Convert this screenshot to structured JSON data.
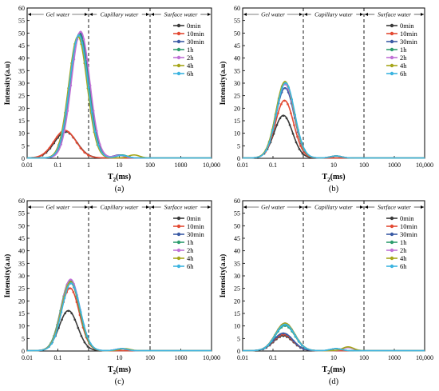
{
  "figure": {
    "region_labels": [
      "Gel water",
      "Capillary water",
      "Surface water"
    ],
    "y_axis_label": "Intensity(a.u)",
    "x_axis_label_base": "T",
    "x_axis_label_sub": "2",
    "x_axis_label_unit": "(ms)"
  },
  "colors": {
    "0min": "#3a3a3a",
    "10min": "#e34a33",
    "30min": "#3b5ba5",
    "1h": "#2e9d6e",
    "2h": "#c071d6",
    "4h": "#a6a61a",
    "6h": "#3cb4e0"
  },
  "chart_data": [
    {
      "panel_label": "(a)",
      "type": "line",
      "x_scale": "log",
      "xlim": [
        0.01,
        10000
      ],
      "ylim": [
        0,
        60
      ],
      "x_ticks": [
        "0.01",
        "0.1",
        "1",
        "10",
        "100",
        "1000",
        "10,000"
      ],
      "y_ticks": [
        "0",
        "5",
        "10",
        "15",
        "20",
        "25",
        "30",
        "35",
        "40",
        "45",
        "50",
        "55",
        "60"
      ],
      "region_boundaries": [
        1,
        100
      ],
      "legend_position": "top-right",
      "series": [
        {
          "name": "0min",
          "peak_x": 0.18,
          "peak_y": 10.5,
          "width": 0.36,
          "second_peak": null
        },
        {
          "name": "10min",
          "peak_x": 0.17,
          "peak_y": 11,
          "width": 0.36,
          "second_peak": null
        },
        {
          "name": "30min",
          "peak_x": 0.52,
          "peak_y": 50,
          "width": 0.3,
          "second_peak": {
            "x": 10,
            "y": 1.2
          }
        },
        {
          "name": "1h",
          "peak_x": 0.5,
          "peak_y": 49.5,
          "width": 0.3,
          "second_peak": {
            "x": 12,
            "y": 1.2
          }
        },
        {
          "name": "2h",
          "peak_x": 0.55,
          "peak_y": 50.5,
          "width": 0.3,
          "second_peak": {
            "x": 10,
            "y": 1.0
          }
        },
        {
          "name": "4h",
          "peak_x": 0.45,
          "peak_y": 48.5,
          "width": 0.3,
          "second_peak": {
            "x": 30,
            "y": 1.2
          }
        },
        {
          "name": "6h",
          "peak_x": 0.48,
          "peak_y": 49,
          "width": 0.3,
          "second_peak": {
            "x": 12,
            "y": 1.0
          }
        }
      ]
    },
    {
      "panel_label": "(b)",
      "type": "line",
      "x_scale": "log",
      "xlim": [
        0.01,
        10000
      ],
      "ylim": [
        0,
        60
      ],
      "x_ticks": [
        "0.01",
        "0.1",
        "1",
        "10",
        "100",
        "1000",
        "10,000"
      ],
      "y_ticks": [
        "0",
        "5",
        "10",
        "15",
        "20",
        "25",
        "30",
        "35",
        "40",
        "45",
        "50",
        "55",
        "60"
      ],
      "region_boundaries": [
        1,
        100
      ],
      "legend_position": "top-right",
      "series": [
        {
          "name": "0min",
          "peak_x": 0.22,
          "peak_y": 17,
          "width": 0.3,
          "second_peak": null
        },
        {
          "name": "10min",
          "peak_x": 0.24,
          "peak_y": 23,
          "width": 0.3,
          "second_peak": null
        },
        {
          "name": "30min",
          "peak_x": 0.25,
          "peak_y": 28,
          "width": 0.3,
          "second_peak": {
            "x": 12,
            "y": 0.8
          }
        },
        {
          "name": "1h",
          "peak_x": 0.25,
          "peak_y": 30,
          "width": 0.3,
          "second_peak": {
            "x": 12,
            "y": 0.8
          }
        },
        {
          "name": "2h",
          "peak_x": 0.25,
          "peak_y": 29.5,
          "width": 0.3,
          "second_peak": {
            "x": 12,
            "y": 0.8
          }
        },
        {
          "name": "4h",
          "peak_x": 0.25,
          "peak_y": 30.5,
          "width": 0.3,
          "second_peak": {
            "x": 12,
            "y": 0.8
          }
        },
        {
          "name": "6h",
          "peak_x": 0.26,
          "peak_y": 30,
          "width": 0.3,
          "second_peak": {
            "x": 12,
            "y": 0.8
          }
        }
      ]
    },
    {
      "panel_label": "(c)",
      "type": "line",
      "x_scale": "log",
      "xlim": [
        0.01,
        10000
      ],
      "ylim": [
        0,
        60
      ],
      "x_ticks": [
        "0.01",
        "0.1",
        "1",
        "10",
        "100",
        "1000",
        "10,000"
      ],
      "y_ticks": [
        "0",
        "5",
        "10",
        "15",
        "20",
        "25",
        "30",
        "35",
        "40",
        "45",
        "50",
        "55",
        "60"
      ],
      "region_boundaries": [
        1,
        100
      ],
      "legend_position": "top-right",
      "series": [
        {
          "name": "0min",
          "peak_x": 0.22,
          "peak_y": 16,
          "width": 0.3,
          "second_peak": null
        },
        {
          "name": "10min",
          "peak_x": 0.25,
          "peak_y": 25,
          "width": 0.3,
          "second_peak": null
        },
        {
          "name": "30min",
          "peak_x": 0.26,
          "peak_y": 27,
          "width": 0.3,
          "second_peak": {
            "x": 12,
            "y": 0.8
          }
        },
        {
          "name": "1h",
          "peak_x": 0.25,
          "peak_y": 28,
          "width": 0.3,
          "second_peak": {
            "x": 12,
            "y": 0.8
          }
        },
        {
          "name": "2h",
          "peak_x": 0.26,
          "peak_y": 28.5,
          "width": 0.3,
          "second_peak": {
            "x": 12,
            "y": 0.8
          }
        },
        {
          "name": "4h",
          "peak_x": 0.26,
          "peak_y": 27.5,
          "width": 0.3,
          "second_peak": {
            "x": 15,
            "y": 0.8
          }
        },
        {
          "name": "6h",
          "peak_x": 0.27,
          "peak_y": 27,
          "width": 0.3,
          "second_peak": {
            "x": 12,
            "y": 0.8
          }
        }
      ]
    },
    {
      "panel_label": "(d)",
      "type": "line",
      "x_scale": "log",
      "xlim": [
        0.01,
        10000
      ],
      "ylim": [
        0,
        60
      ],
      "x_ticks": [
        "0.01",
        "0.1",
        "1",
        "10",
        "100",
        "1000",
        "10,000"
      ],
      "y_ticks": [
        "0",
        "5",
        "10",
        "15",
        "20",
        "25",
        "30",
        "35",
        "40",
        "45",
        "50",
        "55",
        "60"
      ],
      "region_boundaries": [
        1,
        100
      ],
      "legend_position": "top-right",
      "series": [
        {
          "name": "0min",
          "peak_x": 0.22,
          "peak_y": 6,
          "width": 0.32,
          "second_peak": null
        },
        {
          "name": "10min",
          "peak_x": 0.22,
          "peak_y": 6.5,
          "width": 0.32,
          "second_peak": null
        },
        {
          "name": "30min",
          "peak_x": 0.22,
          "peak_y": 7,
          "width": 0.32,
          "second_peak": {
            "x": 12,
            "y": 0.8
          }
        },
        {
          "name": "1h",
          "peak_x": 0.25,
          "peak_y": 10,
          "width": 0.32,
          "second_peak": {
            "x": 12,
            "y": 0.8
          }
        },
        {
          "name": "2h",
          "peak_x": 0.25,
          "peak_y": 11,
          "width": 0.32,
          "second_peak": {
            "x": 30,
            "y": 1.2
          }
        },
        {
          "name": "4h",
          "peak_x": 0.25,
          "peak_y": 11,
          "width": 0.32,
          "second_peak": {
            "x": 30,
            "y": 1.5
          }
        },
        {
          "name": "6h",
          "peak_x": 0.25,
          "peak_y": 10.5,
          "width": 0.32,
          "second_peak": {
            "x": 12,
            "y": 0.8
          }
        }
      ]
    }
  ]
}
